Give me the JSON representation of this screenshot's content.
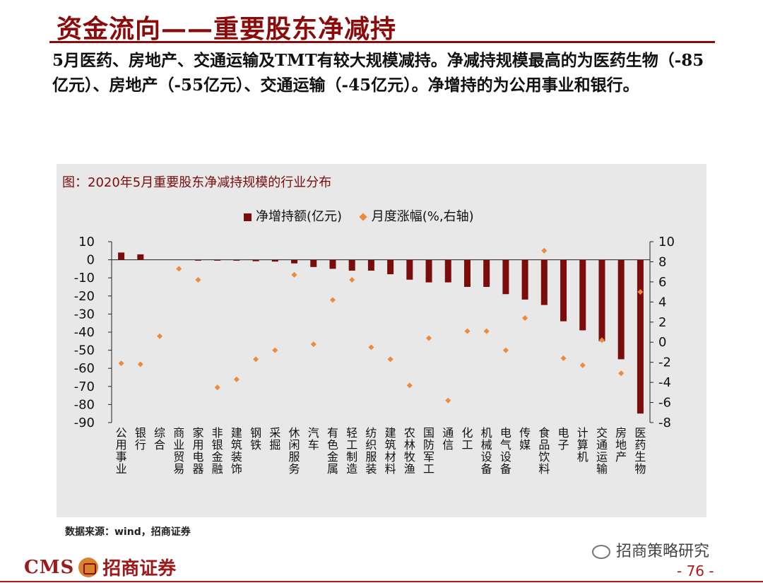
{
  "header": {
    "title": "资金流向——重要股东净减持",
    "summary": "5月医药、房地产、交通运输及TMT有较大规模减持。净减持规模最高的为医药生物（-85亿元）、房地产（-55亿元）、交通运输（-45亿元）。净增持的为公用事业和银行。"
  },
  "chart_data": {
    "type": "bar",
    "title": "图：2020年5月重要股东净减持规模的行业分布",
    "categories": [
      "公用事业",
      "银行",
      "综合",
      "商业贸易",
      "家用电器",
      "非银金融",
      "建筑装饰",
      "钢铁",
      "采掘",
      "休闲服务",
      "汽车",
      "有色金属",
      "轻工制造",
      "纺织服装",
      "建筑材料",
      "农林牧渔",
      "国防军工",
      "通信",
      "化工",
      "机械设备",
      "电气设备",
      "传媒",
      "食品饮料",
      "电子",
      "计算机",
      "交通运输",
      "房地产",
      "医药生物"
    ],
    "series": [
      {
        "name": "净增持额(亿元)",
        "axis": "left",
        "kind": "bar",
        "color": "#7b0c0c",
        "values": [
          4,
          3,
          0,
          0,
          -0.5,
          -0.5,
          -0.5,
          -0.8,
          -1,
          -2,
          -4,
          -5,
          -6,
          -6,
          -8,
          -11,
          -12.5,
          -12.5,
          -15,
          -15,
          -19,
          -22,
          -25,
          -34,
          -39,
          -45,
          -55,
          -85
        ]
      },
      {
        "name": "月度涨幅(%,右轴)",
        "axis": "right",
        "kind": "scatter",
        "color": "#ee8a3a",
        "values": [
          -2.1,
          -2.2,
          0.6,
          7.3,
          6.2,
          -4.5,
          -3.7,
          -1.7,
          -0.8,
          6.7,
          -0.2,
          4.2,
          6.2,
          -0.5,
          -1.7,
          -4.3,
          0.4,
          -5.8,
          1.1,
          1.1,
          -0.8,
          2.4,
          9.1,
          -1.6,
          -2.3,
          0.2,
          -3.1,
          5.0
        ]
      }
    ],
    "left_axis": {
      "min": -90,
      "max": 10,
      "ticks": [
        10,
        0,
        -10,
        -20,
        -30,
        -40,
        -50,
        -60,
        -70,
        -80,
        -90
      ]
    },
    "right_axis": {
      "min": -8,
      "max": 10,
      "ticks": [
        10,
        8,
        6,
        4,
        2,
        0,
        -2,
        -4,
        -6,
        -8
      ]
    },
    "legend": [
      "净增持额(亿元)",
      "月度涨幅(%,右轴)"
    ],
    "source": "数据来源：wind，招商证券"
  },
  "footer": {
    "logo_en": "CMS",
    "logo_cn": "招商证券",
    "watermark": "招商策略研究",
    "page_number": "- 76 -"
  },
  "colors": {
    "brand": "#8b0a0a",
    "bar": "#7b0c0c",
    "marker": "#ee8a3a",
    "panel": "#e8e8e8"
  }
}
